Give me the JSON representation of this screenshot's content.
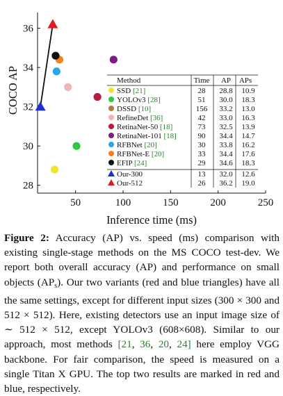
{
  "chart_data": {
    "type": "scatter",
    "xlabel": "Inference time (ms)",
    "ylabel": "COCO AP",
    "xlim": [
      10,
      250
    ],
    "ylim": [
      27.6,
      36.8
    ],
    "xticks": [
      "50",
      "100",
      "150",
      "200",
      "250"
    ],
    "yticks": [
      "28",
      "30",
      "32",
      "34",
      "36"
    ],
    "grid": false,
    "legend_placement": "right (table)",
    "table_headers": [
      "Method",
      "Time",
      "AP",
      "APs"
    ],
    "series": [
      {
        "name": "SSD",
        "cite": "[21]",
        "marker": "circle",
        "color": "#f2e32a",
        "x": 28,
        "y": 28.8,
        "time": "28",
        "ap": "28.8",
        "aps": "10.9"
      },
      {
        "name": "YOLOv3",
        "cite": "[28]",
        "marker": "circle",
        "color": "#2cc840",
        "x": 51,
        "y": 30.0,
        "time": "51",
        "ap": "30.0",
        "aps": "18.3",
        "aps_color": "#2233cc"
      },
      {
        "name": "DSSD",
        "cite": "[10]",
        "marker": "circle",
        "color": "#a88046",
        "x": 156,
        "y": 33.2,
        "time": "156",
        "ap": "33.2",
        "aps": "13.0"
      },
      {
        "name": "RefineDet",
        "cite": "[36]",
        "marker": "circle",
        "color": "#f4b3b3",
        "x": 42,
        "y": 33.0,
        "time": "42",
        "ap": "33.0",
        "aps": "16.3"
      },
      {
        "name": "RetinaNet-50",
        "cite": "[18]",
        "marker": "circle",
        "color": "#b51f3c",
        "x": 73,
        "y": 32.5,
        "time": "73",
        "ap": "32.5",
        "aps": "13.9"
      },
      {
        "name": "RetinaNet-101",
        "cite": "[18]",
        "marker": "circle",
        "color": "#7a1e86",
        "x": 90,
        "y": 34.4,
        "time": "90",
        "ap": "34.4",
        "aps": "14.7"
      },
      {
        "name": "RFBNet",
        "cite": "[20]",
        "marker": "circle",
        "color": "#2aa7e8",
        "x": 30,
        "y": 33.8,
        "time": "30",
        "ap": "33.8",
        "aps": "16.2"
      },
      {
        "name": "RFBNet-E",
        "cite": "[20]",
        "marker": "circle",
        "color": "#f58220",
        "x": 33,
        "y": 34.4,
        "time": "33",
        "ap": "34.4",
        "aps": "17.6"
      },
      {
        "name": "EFIP",
        "cite": "[24]",
        "marker": "circle",
        "color": "#111111",
        "x": 29,
        "y": 34.6,
        "time": "29",
        "ap": "34.6",
        "aps": "18.3",
        "ap_color": "#2233cc"
      },
      {
        "name": "Our-300",
        "cite": "",
        "marker": "triangle",
        "color": "#1f2fd1",
        "x": 13,
        "y": 32.0,
        "time": "13",
        "ap": "32.0",
        "aps": "12.6"
      },
      {
        "name": "Our-512",
        "cite": "",
        "marker": "triangle",
        "color": "#e11b1b",
        "x": 26,
        "y": 36.2,
        "time": "26",
        "ap": "36.2",
        "aps": "19.0",
        "ap_color": "#e11b1b",
        "aps_color": "#e11b1b"
      }
    ]
  },
  "caption": {
    "label": "Figure 2:",
    "t1": " Accuracy (AP) vs. speed (ms) comparison with existing single-stage methods on the MS COCO test-dev. We report both overall accuracy (AP) and performance on small objects (AP",
    "t1_sub": "s",
    "t2": "). Our two variants (red and blue triangles) have all the same settings, except for different input sizes (300 × 300 and 512 × 512). Here, existing detectors use an input image size of ∼ 512 × 512, except YOLOv3 (608×608). Similar to our approach, most methods ",
    "c1": "[21",
    "s1": ", ",
    "c2": "36",
    "s2": ", ",
    "c3": "20",
    "s3": ", ",
    "c4": "24]",
    "t3": " here employ VGG backbone. For fair comparison, the speed is measured on a single Titan X GPU. The top two results are marked in red and blue, respectively."
  }
}
